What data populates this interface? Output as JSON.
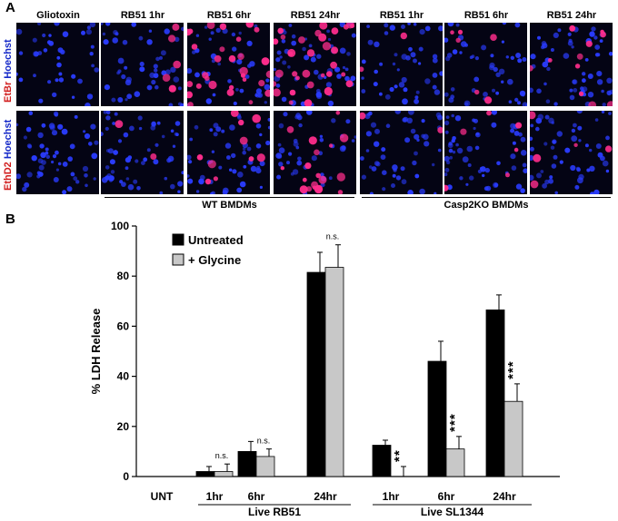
{
  "panel_a": {
    "letter": "A",
    "columns": [
      "Gliotoxin",
      "RB51 1hr",
      "RB51 6hr",
      "RB51 24hr",
      "RB51 1hr",
      "RB51 6hr",
      "RB51 24hr"
    ],
    "rows": [
      {
        "stain": "EtBr",
        "counter": "Hoechst",
        "intensity": [
          0,
          0.15,
          0.9,
          1.0,
          0.05,
          0.2,
          0.35
        ]
      },
      {
        "stain": "EthD2",
        "counter": "Hoechst",
        "intensity": [
          0,
          0.05,
          0.3,
          0.55,
          0.05,
          0.2,
          0.15
        ]
      }
    ],
    "groups": [
      "WT BMDMs",
      "Casp2KO BMDMs"
    ],
    "colors": {
      "nuclei": "#2a3cff",
      "dead": "#ff2d8c",
      "background": "#040414"
    }
  },
  "panel_b": {
    "letter": "B",
    "legend": [
      "Untreated",
      "+ Glycine"
    ]
  },
  "chart_data": {
    "type": "bar",
    "ylabel": "% LDH Release",
    "ylim": [
      0,
      100
    ],
    "yticks": [
      0,
      20,
      40,
      60,
      80,
      100
    ],
    "categories": [
      "UNT",
      "1hr",
      "6hr",
      "24hr",
      "1hr",
      "6hr",
      "24hr"
    ],
    "group_labels": [
      "Live RB51",
      "Live SL1344"
    ],
    "series": [
      {
        "name": "Untreated",
        "color": "#000000",
        "values": [
          0,
          2,
          10,
          81.5,
          12.5,
          46,
          66.5
        ],
        "errors": [
          0,
          2,
          4,
          8,
          2,
          8,
          6
        ]
      },
      {
        "name": "+ Glycine",
        "color": "#c8c8c8",
        "values": [
          0,
          2,
          8,
          83.5,
          0,
          11,
          30
        ],
        "errors": [
          0,
          3,
          3,
          9,
          4,
          5,
          7
        ]
      }
    ],
    "annotations": [
      {
        "category_index": 1,
        "text": "n.s."
      },
      {
        "category_index": 2,
        "text": "n.s."
      },
      {
        "category_index": 3,
        "text": "n.s."
      },
      {
        "category_index": 4,
        "text": "**"
      },
      {
        "category_index": 5,
        "text": "***"
      },
      {
        "category_index": 6,
        "text": "***"
      }
    ]
  }
}
